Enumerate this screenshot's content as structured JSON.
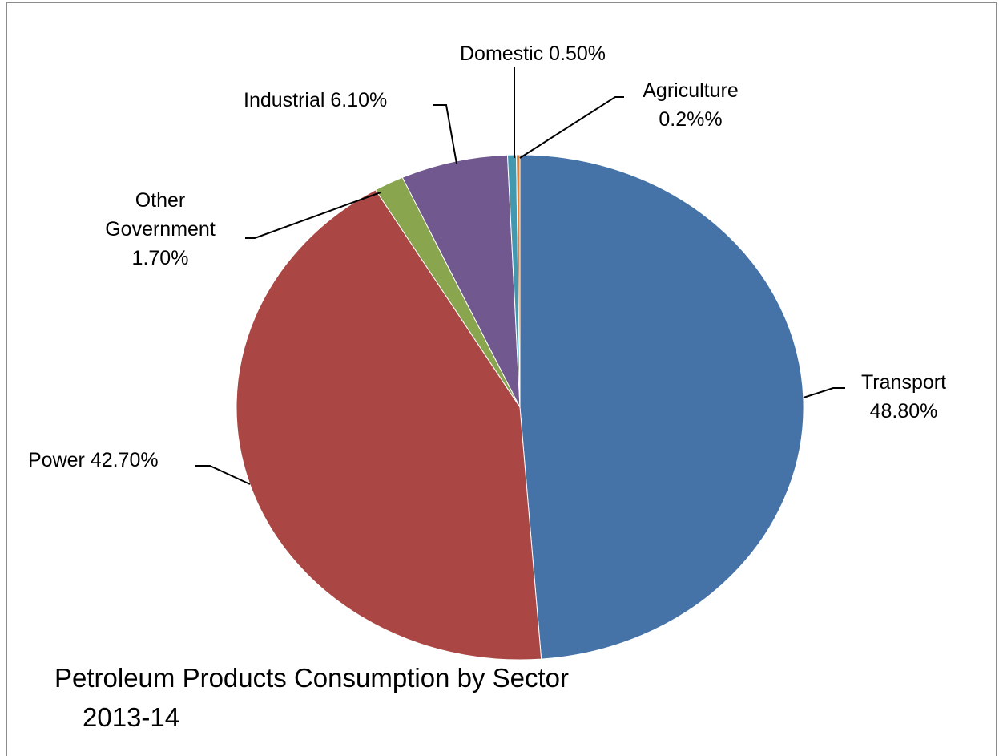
{
  "chart_data": {
    "type": "pie",
    "title": "Petroleum Products  Consumption by Sector",
    "subtitle": "2013-14",
    "slices": [
      {
        "key": "transport",
        "label": "Transport",
        "value_label": "48.80%",
        "value": 48.8,
        "color": "#4572A7"
      },
      {
        "key": "power",
        "label": "Power",
        "value_label": "42.70%",
        "value": 42.7,
        "color": "#AA4643"
      },
      {
        "key": "other_government",
        "label": "Other Government",
        "value_label": "1.70%",
        "value": 1.7,
        "color": "#89A54E"
      },
      {
        "key": "industrial",
        "label": "Industrial",
        "value_label": "6.10%",
        "value": 6.1,
        "color": "#71588F"
      },
      {
        "key": "domestic",
        "label": "Domestic",
        "value_label": "0.50%",
        "value": 0.5,
        "color": "#4198AF"
      },
      {
        "key": "agriculture",
        "label": "Agriculture",
        "value_label": "0.2%%",
        "value": 0.2,
        "color": "#DB843D"
      }
    ],
    "label_text": {
      "transport": [
        "Transport",
        "48.80%"
      ],
      "power": [
        "Power 42.70%"
      ],
      "other_government": [
        "Other",
        "Government",
        "1.70%"
      ],
      "industrial": [
        "Industrial 6.10%"
      ],
      "domestic": [
        "Domestic 0.50%"
      ],
      "agriculture": [
        "Agriculture",
        "0.2%%"
      ]
    },
    "legend": "none",
    "start_angle": "12 o'clock",
    "direction": "clockwise"
  }
}
